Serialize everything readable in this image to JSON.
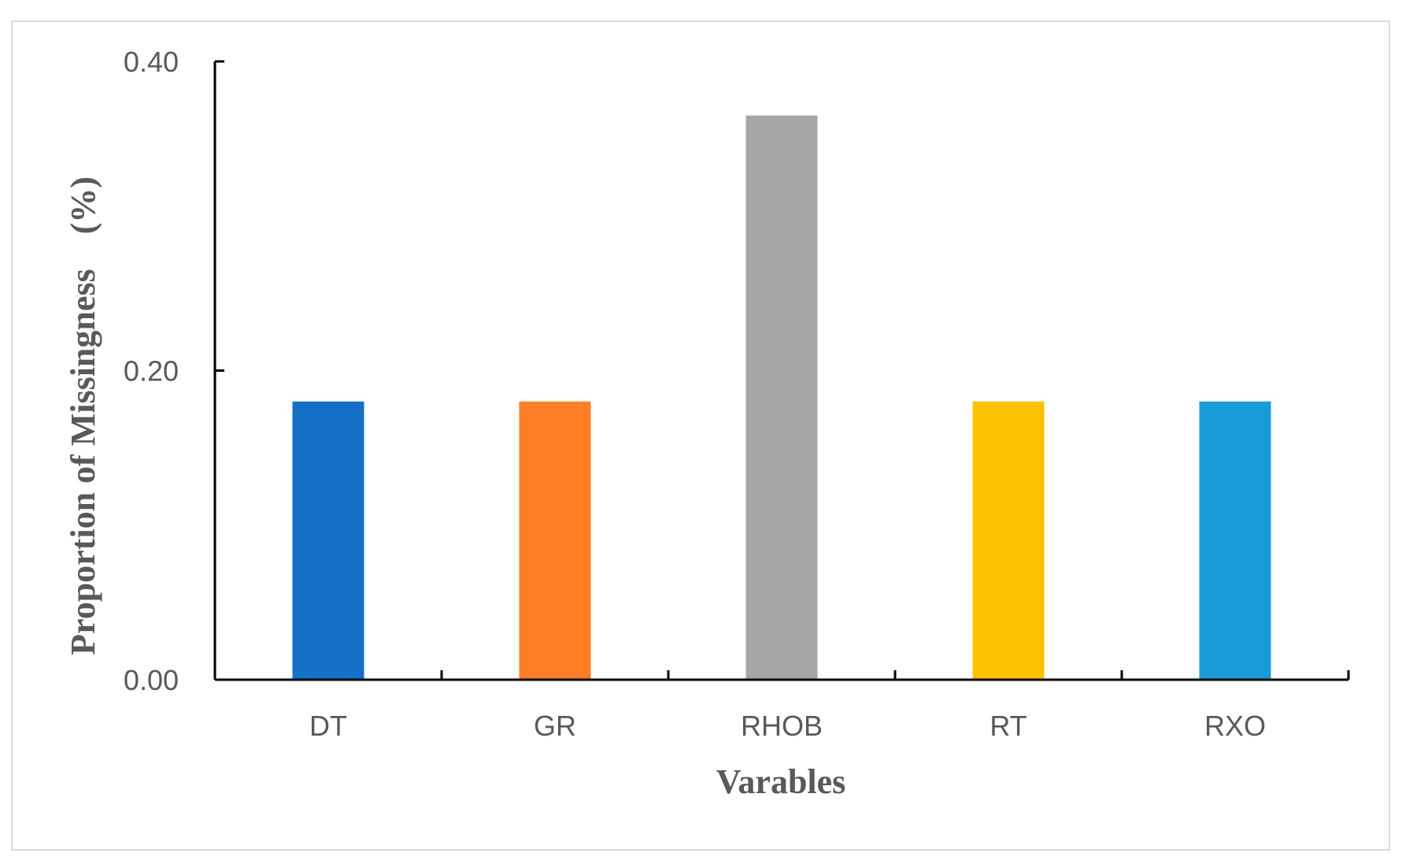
{
  "chart_data": {
    "type": "bar",
    "categories": [
      "DT",
      "GR",
      "RHOB",
      "RT",
      "RXO"
    ],
    "values": [
      0.18,
      0.18,
      0.365,
      0.18,
      0.18
    ],
    "colors": [
      "#1570c8",
      "#fe7e26",
      "#a6a6a6",
      "#fcc100",
      "#199bd8"
    ],
    "title": "",
    "xlabel": "Varables",
    "ylabel": "Proportion of Missingness　(%)",
    "ylim": [
      0,
      0.4
    ],
    "yticks": [
      "0.00",
      "0.20",
      "0.40"
    ],
    "grid": false,
    "legend": "none"
  }
}
